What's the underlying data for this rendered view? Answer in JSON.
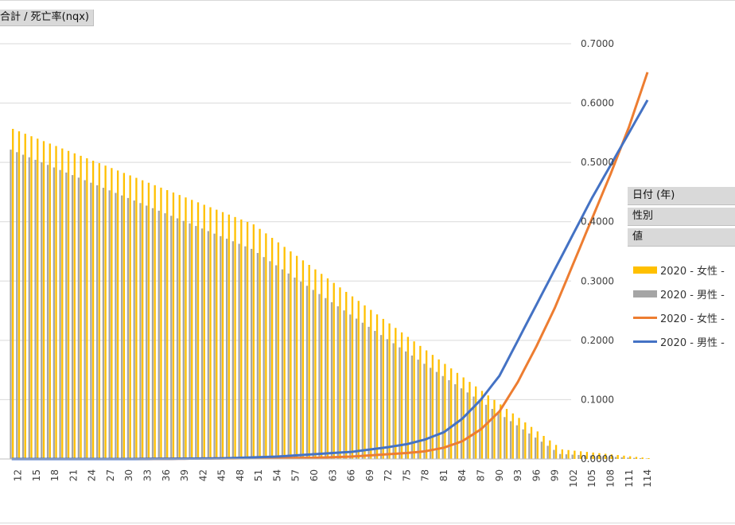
{
  "field_button": "合計 / 死亡率(nqx)",
  "legend": {
    "fields": [
      "日付 (年)",
      "性別",
      "値"
    ],
    "entries": [
      {
        "label": "2020 - 女性 -",
        "kind": "bar",
        "color": "#FFC000"
      },
      {
        "label": "2020 - 男性 -",
        "kind": "bar",
        "color": "#A5A5A5"
      },
      {
        "label": "2020 - 女性 -",
        "kind": "line",
        "color": "#ED7D31"
      },
      {
        "label": "2020 - 男性 -",
        "kind": "line",
        "color": "#4472C4"
      }
    ]
  },
  "chart_data": {
    "type": "bar",
    "title": "",
    "xlabel": "",
    "ylabel": "",
    "secondary_y_ticks": [
      "0.0000",
      "0.1000",
      "0.2000",
      "0.3000",
      "0.4000",
      "0.5000",
      "0.6000",
      "0.7000"
    ],
    "secondary_ylim": [
      0,
      0.7
    ],
    "primary_ylim": [
      0,
      1
    ],
    "primary_y_ticks_visible": false,
    "x_start": 11,
    "x_end": 114,
    "x_tick_labels": [
      "12",
      "15",
      "18",
      "21",
      "24",
      "27",
      "30",
      "33",
      "36",
      "39",
      "42",
      "45",
      "48",
      "51",
      "54",
      "57",
      "60",
      "63",
      "66",
      "69",
      "72",
      "75",
      "78",
      "81",
      "84",
      "87",
      "90",
      "93",
      "96",
      "99",
      "102",
      "105",
      "108",
      "111",
      "114"
    ],
    "bar_series": [
      {
        "name": "2020 - 女性 -",
        "color": "#FFC000",
        "axis": "primary",
        "points": [
          [
            11,
            0.795
          ],
          [
            50,
            0.565
          ],
          [
            100,
            0.023
          ],
          [
            114,
            0.002
          ]
        ]
      },
      {
        "name": "2020 - 男性 -",
        "color": "#A5A5A5",
        "axis": "primary",
        "points": [
          [
            11,
            0.745
          ],
          [
            50,
            0.506
          ],
          [
            100,
            0.012
          ],
          [
            114,
            0.001
          ]
        ]
      }
    ],
    "line_series": [
      {
        "name": "2020 - 女性 -",
        "color": "#ED7D31",
        "axis": "secondary",
        "points": [
          [
            11,
            0.0
          ],
          [
            30,
            0.0
          ],
          [
            60,
            0.002
          ],
          [
            66,
            0.004
          ],
          [
            72,
            0.008
          ],
          [
            75,
            0.01
          ],
          [
            78,
            0.013
          ],
          [
            81,
            0.019
          ],
          [
            84,
            0.03
          ],
          [
            87,
            0.05
          ],
          [
            90,
            0.08
          ],
          [
            93,
            0.13
          ],
          [
            96,
            0.19
          ],
          [
            99,
            0.255
          ],
          [
            102,
            0.33
          ],
          [
            105,
            0.405
          ],
          [
            108,
            0.48
          ],
          [
            111,
            0.56
          ],
          [
            114,
            0.652
          ]
        ]
      },
      {
        "name": "2020 - 男性 -",
        "color": "#4472C4",
        "axis": "secondary",
        "points": [
          [
            11,
            0.0
          ],
          [
            30,
            0.0
          ],
          [
            45,
            0.001
          ],
          [
            54,
            0.004
          ],
          [
            60,
            0.008
          ],
          [
            66,
            0.012
          ],
          [
            72,
            0.02
          ],
          [
            75,
            0.025
          ],
          [
            78,
            0.033
          ],
          [
            81,
            0.045
          ],
          [
            84,
            0.068
          ],
          [
            87,
            0.1
          ],
          [
            90,
            0.14
          ],
          [
            93,
            0.2
          ],
          [
            96,
            0.26
          ],
          [
            99,
            0.32
          ],
          [
            102,
            0.38
          ],
          [
            105,
            0.44
          ],
          [
            108,
            0.495
          ],
          [
            111,
            0.55
          ],
          [
            114,
            0.605
          ]
        ]
      }
    ]
  }
}
